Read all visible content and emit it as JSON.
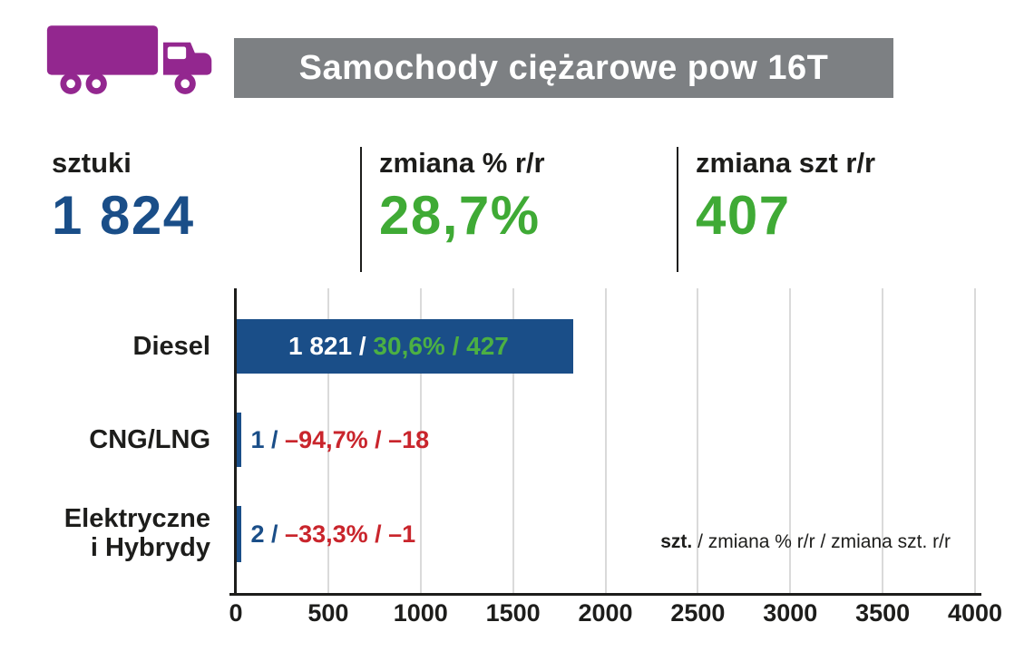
{
  "header": {
    "title": "Samochody ciężarowe pow 16T"
  },
  "stats": {
    "items": [
      {
        "label": "sztuki",
        "value": "1 824"
      },
      {
        "label": "zmiana % r/r",
        "value": "28,7%"
      },
      {
        "label": "zmiana szt r/r",
        "value": "407"
      }
    ]
  },
  "colors": {
    "purple": "#93278f",
    "banner_gray": "#7d8083",
    "blue": "#1a4e88",
    "green": "#3faa35",
    "bar_text_green": "#4cb043",
    "red": "#c9252c",
    "grid_gray": "#dadada"
  },
  "chart_data": {
    "type": "bar",
    "orientation": "horizontal",
    "title": "",
    "xlabel": "",
    "ylabel": "",
    "grid": true,
    "xlim": [
      0,
      4000
    ],
    "x_ticks": [
      0,
      500,
      1000,
      1500,
      2000,
      2500,
      3000,
      3500,
      4000
    ],
    "categories": [
      "Diesel",
      "CNG/LNG",
      "Elektryczne i Hybrydy"
    ],
    "values": [
      1821,
      1,
      2
    ],
    "rows": [
      {
        "label": "Diesel",
        "label_line2": "",
        "units": 1821,
        "change_pct": 30.6,
        "change_units": 427,
        "value_text": "1 821 /",
        "change_text": "30,6% / 427",
        "text_inside": true
      },
      {
        "label": "CNG/LNG",
        "label_line2": "",
        "units": 1,
        "change_pct": -94.7,
        "change_units": -18,
        "value_text": "1 /",
        "change_text": "–94,7% / –18",
        "text_inside": false
      },
      {
        "label": "Elektryczne",
        "label_line2": "i Hybrydy",
        "units": 2,
        "change_pct": -33.3,
        "change_units": -1,
        "value_text": "2 /",
        "change_text": "–33,3% / –1",
        "text_inside": false
      }
    ],
    "legend": {
      "bold": "szt.",
      "rest": " / zmiana % r/r / zmiana szt. r/r"
    },
    "legend_position": "inside-right"
  }
}
